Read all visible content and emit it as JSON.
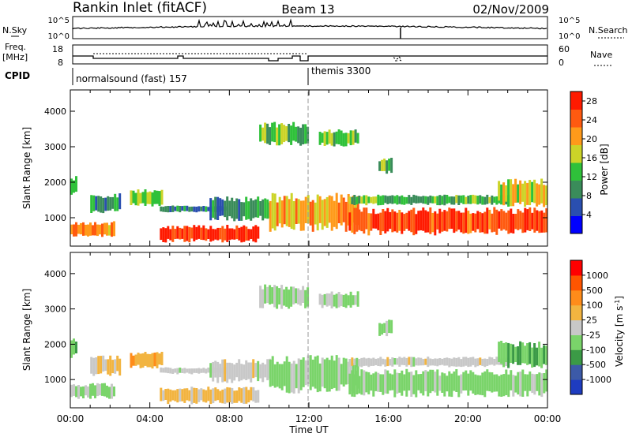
{
  "header": {
    "station": "Rankin Inlet (fitACF)",
    "beam": "Beam 13",
    "date": "02/Nov/2009"
  },
  "noise_panel": {
    "left_label": "N.Sky",
    "left_ticks": [
      "10^5",
      "10^0"
    ],
    "right_ticks": [
      "10^5",
      "10^0"
    ],
    "right_label": "N.Search"
  },
  "freq_panel": {
    "left_label_line1": "Freq.",
    "left_label_line2": "[MHz]",
    "left_ticks": [
      "18",
      "8"
    ],
    "right_ticks": [
      "60",
      "0"
    ],
    "right_label": "Nave"
  },
  "cpid_panel": {
    "label": "CPID",
    "programs": [
      {
        "name": "normalsound (fast) 157",
        "start_hour": 0
      },
      {
        "name": "themis 3300",
        "start_hour": 12
      }
    ]
  },
  "x_axis": {
    "label": "Time UT",
    "ticks": [
      "00:00",
      "04:00",
      "08:00",
      "12:00",
      "16:00",
      "20:00",
      "00:00"
    ]
  },
  "colors": {
    "scale_power": [
      "#0000ff",
      "#2a4fb0",
      "#3a8c5a",
      "#2fc13a",
      "#ccd428",
      "#ff9a1a",
      "#ff5a10",
      "#ff1a00"
    ],
    "scale_velocity": [
      "#ff0000",
      "#ff5500",
      "#ff8c1a",
      "#f2b440",
      "#c8c8c8",
      "#7ad46a",
      "#3b9a46",
      "#3c5aa8",
      "#1e3cc0"
    ]
  },
  "chart_data": [
    {
      "type": "heatmap",
      "title": "",
      "xlabel": "Time UT",
      "ylabel": "Slant Range [km]",
      "xlim": [
        0,
        24
      ],
      "ylim": [
        200,
        4600
      ],
      "yticks": [
        "1000",
        "2000",
        "3000",
        "4000"
      ],
      "colorbar": {
        "label": "Power [dB]",
        "ticks": [
          "4",
          "8",
          "12",
          "16",
          "20",
          "24",
          "28"
        ],
        "range": [
          0,
          30
        ]
      },
      "echo_regions": [
        {
          "t0": 0.0,
          "t1": 0.25,
          "r0": 1600,
          "r1": 2200,
          "value": 12
        },
        {
          "t0": 0.0,
          "t1": 2.2,
          "r0": 450,
          "r1": 900,
          "value": 22
        },
        {
          "t0": 1.0,
          "t1": 2.5,
          "r0": 1100,
          "r1": 1700,
          "value": 10
        },
        {
          "t0": 3.0,
          "t1": 4.6,
          "r0": 1300,
          "r1": 1800,
          "value": 14
        },
        {
          "t0": 4.5,
          "t1": 7.8,
          "r0": 1150,
          "r1": 1350,
          "value": 8
        },
        {
          "t0": 4.5,
          "t1": 9.5,
          "r0": 300,
          "r1": 800,
          "value": 27
        },
        {
          "t0": 7.0,
          "t1": 10.0,
          "r0": 900,
          "r1": 1600,
          "value": 10
        },
        {
          "t0": 9.5,
          "t1": 12.0,
          "r0": 3000,
          "r1": 3700,
          "value": 14
        },
        {
          "t0": 10.0,
          "t1": 14.5,
          "r0": 600,
          "r1": 1700,
          "value": 20
        },
        {
          "t0": 12.5,
          "t1": 14.5,
          "r0": 3000,
          "r1": 3500,
          "value": 13
        },
        {
          "t0": 14.0,
          "t1": 22.0,
          "r0": 1350,
          "r1": 1650,
          "value": 12
        },
        {
          "t0": 14.0,
          "t1": 24.0,
          "r0": 500,
          "r1": 1300,
          "value": 26
        },
        {
          "t0": 15.5,
          "t1": 16.2,
          "r0": 2200,
          "r1": 2700,
          "value": 14
        },
        {
          "t0": 21.5,
          "t1": 24.0,
          "r0": 1300,
          "r1": 2100,
          "value": 18
        }
      ]
    },
    {
      "type": "heatmap",
      "title": "",
      "xlabel": "Time UT",
      "ylabel": "Slant Range [km]",
      "xlim": [
        0,
        24
      ],
      "ylim": [
        200,
        4600
      ],
      "yticks": [
        "1000",
        "2000",
        "3000",
        "4000"
      ],
      "colorbar": {
        "label": "Velocity [m s^-1]",
        "ticks": [
          "1000",
          "500",
          "100",
          "25",
          "-25",
          "-100",
          "-500",
          "-1000"
        ],
        "range": [
          -1200,
          1200
        ]
      },
      "echo_regions": [
        {
          "t0": 0.0,
          "t1": 0.25,
          "r0": 1600,
          "r1": 2200,
          "value": -400
        },
        {
          "t0": 0.0,
          "t1": 2.2,
          "r0": 450,
          "r1": 900,
          "value": -150
        },
        {
          "t0": 1.0,
          "t1": 2.5,
          "r0": 1100,
          "r1": 1700,
          "value": 150
        },
        {
          "t0": 3.0,
          "t1": 4.6,
          "r0": 1300,
          "r1": 1800,
          "value": 300
        },
        {
          "t0": 4.5,
          "t1": 7.8,
          "r0": 1150,
          "r1": 1350,
          "value": 0
        },
        {
          "t0": 4.5,
          "t1": 9.5,
          "r0": 300,
          "r1": 800,
          "value": 200
        },
        {
          "t0": 7.0,
          "t1": 10.0,
          "r0": 900,
          "r1": 1600,
          "value": 0
        },
        {
          "t0": 9.5,
          "t1": 12.0,
          "r0": 3000,
          "r1": 3700,
          "value": -150
        },
        {
          "t0": 10.0,
          "t1": 14.5,
          "r0": 600,
          "r1": 1700,
          "value": -200
        },
        {
          "t0": 12.5,
          "t1": 14.5,
          "r0": 3000,
          "r1": 3500,
          "value": -150
        },
        {
          "t0": 14.0,
          "t1": 22.0,
          "r0": 1350,
          "r1": 1650,
          "value": 0
        },
        {
          "t0": 14.0,
          "t1": 24.0,
          "r0": 500,
          "r1": 1300,
          "value": -250
        },
        {
          "t0": 15.5,
          "t1": 16.2,
          "r0": 2200,
          "r1": 2700,
          "value": -150
        },
        {
          "t0": 21.5,
          "t1": 24.0,
          "r0": 1300,
          "r1": 2100,
          "value": -400
        }
      ]
    }
  ]
}
